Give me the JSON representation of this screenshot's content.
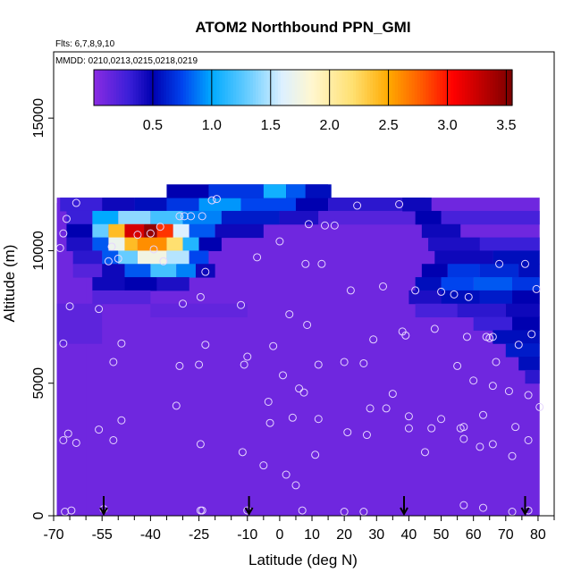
{
  "chart_data": {
    "type": "heatmap",
    "title": "ATOM2 Northbound PPN_GMI",
    "flights_label": "Flts: 6,7,8,9,10",
    "dates_label": "MMDD: 0210,0213,0215,0218,0219",
    "xlabel": "Latitude (deg N)",
    "ylabel": "Altitude (m)",
    "xlim": [
      -70,
      85
    ],
    "ylim": [
      0,
      17500
    ],
    "x_ticks": [
      -70,
      -55,
      -40,
      -25,
      -10,
      0,
      10,
      20,
      30,
      40,
      50,
      60,
      70,
      80
    ],
    "x_minor_ticks": [
      -65,
      -60,
      -50,
      -45,
      -35,
      -30,
      -20,
      -15,
      -5,
      5,
      15,
      25,
      35,
      45,
      55,
      65,
      75,
      85
    ],
    "y_ticks": [
      0,
      5000,
      10000,
      15000
    ],
    "colorbar": {
      "min": 0,
      "max": 3.55,
      "ticks": [
        0.5,
        1.0,
        1.5,
        2.0,
        2.5,
        3.0,
        3.5
      ],
      "tick_labels": [
        "0.5",
        "1.0",
        "1.5",
        "2.0",
        "2.5",
        "3.0",
        "3.5"
      ],
      "stops": [
        [
          0.0,
          "#8a2be2"
        ],
        [
          0.3,
          "#3a1fd8"
        ],
        [
          0.5,
          "#0000b0"
        ],
        [
          0.75,
          "#0044ee"
        ],
        [
          1.0,
          "#00aaff"
        ],
        [
          1.3,
          "#66ccff"
        ],
        [
          1.6,
          "#ddf0ff"
        ],
        [
          1.85,
          "#fff7d0"
        ],
        [
          2.2,
          "#ffe070"
        ],
        [
          2.5,
          "#ffaa00"
        ],
        [
          2.8,
          "#ff5500"
        ],
        [
          3.05,
          "#ff0000"
        ],
        [
          3.55,
          "#7a0000"
        ]
      ]
    },
    "background_value": 0.1,
    "background_columns": [
      {
        "x0": -69.0,
        "x1": 80.5,
        "ytop": 12000
      },
      {
        "x0": -69.0,
        "x1": -60.0,
        "ytop": 11800
      }
    ],
    "cells": [
      {
        "x0": -68,
        "x1": -55,
        "y0": 11500,
        "y1": 12000,
        "v": 0.3
      },
      {
        "x0": -55,
        "x1": -45,
        "y0": 11500,
        "y1": 12000,
        "v": 0.45
      },
      {
        "x0": -45,
        "x1": -35,
        "y0": 11500,
        "y1": 12000,
        "v": 0.55
      },
      {
        "x0": -35,
        "x1": -25,
        "y0": 11500,
        "y1": 12000,
        "v": 0.7
      },
      {
        "x0": -25,
        "x1": -12,
        "y0": 11500,
        "y1": 12000,
        "v": 0.95
      },
      {
        "x0": -12,
        "x1": 5,
        "y0": 11500,
        "y1": 12000,
        "v": 0.75
      },
      {
        "x0": 5,
        "x1": 15,
        "y0": 11500,
        "y1": 12000,
        "v": 0.5
      },
      {
        "x0": 15,
        "x1": 45,
        "y0": 11500,
        "y1": 12000,
        "v": 0.35
      },
      {
        "x0": -35,
        "x1": 15,
        "y0": 12000,
        "y1": 12500,
        "v": 0.5
      },
      {
        "x0": -22,
        "x1": -5,
        "y0": 12000,
        "y1": 12500,
        "v": 0.7
      },
      {
        "x0": -5,
        "x1": 2,
        "y0": 12000,
        "y1": 12500,
        "v": 1.05
      },
      {
        "x0": 2,
        "x1": 8,
        "y0": 12000,
        "y1": 12500,
        "v": 0.8
      },
      {
        "x0": 8,
        "x1": 16,
        "y0": 12000,
        "y1": 12500,
        "v": 0.55
      },
      {
        "x0": -66,
        "x1": -58,
        "y0": 11000,
        "y1": 11500,
        "v": 0.3
      },
      {
        "x0": -58,
        "x1": -50,
        "y0": 11000,
        "y1": 11500,
        "v": 1.0
      },
      {
        "x0": -50,
        "x1": -40,
        "y0": 11000,
        "y1": 11500,
        "v": 1.4
      },
      {
        "x0": -40,
        "x1": -30,
        "y0": 11000,
        "y1": 11500,
        "v": 1.2
      },
      {
        "x0": -30,
        "x1": -18,
        "y0": 11000,
        "y1": 11500,
        "v": 0.9
      },
      {
        "x0": -18,
        "x1": 0,
        "y0": 11000,
        "y1": 11500,
        "v": 0.6
      },
      {
        "x0": 0,
        "x1": 12,
        "y0": 11000,
        "y1": 11500,
        "v": 0.4
      },
      {
        "x0": 12,
        "x1": 42,
        "y0": 11000,
        "y1": 11500,
        "v": 0.2
      },
      {
        "x0": -66,
        "x1": -58,
        "y0": 10500,
        "y1": 11000,
        "v": 0.5
      },
      {
        "x0": -58,
        "x1": -53,
        "y0": 10500,
        "y1": 11000,
        "v": 1.3
      },
      {
        "x0": -53,
        "x1": -48,
        "y0": 10500,
        "y1": 11000,
        "v": 2.4
      },
      {
        "x0": -48,
        "x1": -42,
        "y0": 10500,
        "y1": 11000,
        "v": 3.2
      },
      {
        "x0": -42,
        "x1": -38,
        "y0": 10500,
        "y1": 11000,
        "v": 3.45
      },
      {
        "x0": -38,
        "x1": -33,
        "y0": 10500,
        "y1": 11000,
        "v": 2.9
      },
      {
        "x0": -33,
        "x1": -28,
        "y0": 10500,
        "y1": 11000,
        "v": 1.6
      },
      {
        "x0": -28,
        "x1": -20,
        "y0": 10500,
        "y1": 11000,
        "v": 0.8
      },
      {
        "x0": -20,
        "x1": -5,
        "y0": 10500,
        "y1": 11000,
        "v": 0.45
      },
      {
        "x0": -66,
        "x1": -58,
        "y0": 10000,
        "y1": 10500,
        "v": 0.4
      },
      {
        "x0": -58,
        "x1": -53,
        "y0": 10000,
        "y1": 10500,
        "v": 0.8
      },
      {
        "x0": -53,
        "x1": -48,
        "y0": 10000,
        "y1": 10500,
        "v": 1.7
      },
      {
        "x0": -48,
        "x1": -44,
        "y0": 10000,
        "y1": 10500,
        "v": 2.4
      },
      {
        "x0": -44,
        "x1": -35,
        "y0": 10000,
        "y1": 10500,
        "v": 2.6
      },
      {
        "x0": -35,
        "x1": -30,
        "y0": 10000,
        "y1": 10500,
        "v": 2.2
      },
      {
        "x0": -30,
        "x1": -25,
        "y0": 10000,
        "y1": 10500,
        "v": 1.1
      },
      {
        "x0": -25,
        "x1": -18,
        "y0": 10000,
        "y1": 10500,
        "v": 0.5
      },
      {
        "x0": -64,
        "x1": -55,
        "y0": 9500,
        "y1": 10000,
        "v": 0.35
      },
      {
        "x0": -55,
        "x1": -50,
        "y0": 9500,
        "y1": 10000,
        "v": 0.8
      },
      {
        "x0": -50,
        "x1": -44,
        "y0": 9500,
        "y1": 10000,
        "v": 1.3
      },
      {
        "x0": -44,
        "x1": -35,
        "y0": 9500,
        "y1": 10000,
        "v": 1.75
      },
      {
        "x0": -35,
        "x1": -28,
        "y0": 9500,
        "y1": 10000,
        "v": 1.5
      },
      {
        "x0": -28,
        "x1": -22,
        "y0": 9500,
        "y1": 10000,
        "v": 0.75
      },
      {
        "x0": -64,
        "x1": -55,
        "y0": 9000,
        "y1": 9500,
        "v": 0.2
      },
      {
        "x0": -55,
        "x1": -48,
        "y0": 9000,
        "y1": 9500,
        "v": 0.45
      },
      {
        "x0": -48,
        "x1": -40,
        "y0": 9000,
        "y1": 9500,
        "v": 0.8
      },
      {
        "x0": -40,
        "x1": -32,
        "y0": 9000,
        "y1": 9500,
        "v": 1.2
      },
      {
        "x0": -32,
        "x1": -26,
        "y0": 9000,
        "y1": 9500,
        "v": 0.9
      },
      {
        "x0": -26,
        "x1": -20,
        "y0": 9000,
        "y1": 9500,
        "v": 0.45
      },
      {
        "x0": -58,
        "x1": -48,
        "y0": 8500,
        "y1": 9000,
        "v": 0.45
      },
      {
        "x0": -48,
        "x1": -38,
        "y0": 8500,
        "y1": 9000,
        "v": 0.5
      },
      {
        "x0": -38,
        "x1": -28,
        "y0": 8500,
        "y1": 9000,
        "v": 0.4
      },
      {
        "x0": -58,
        "x1": -40,
        "y0": 8000,
        "y1": 8500,
        "v": 0.2
      },
      {
        "x0": 45,
        "x1": 80.5,
        "y0": 11000,
        "y1": 11500,
        "v": 0.25
      },
      {
        "x0": 38,
        "x1": 47,
        "y0": 11500,
        "y1": 12000,
        "v": 0.45
      },
      {
        "x0": 42,
        "x1": 50,
        "y0": 11000,
        "y1": 11500,
        "v": 0.5
      },
      {
        "x0": 44,
        "x1": 56,
        "y0": 10500,
        "y1": 11000,
        "v": 0.45
      },
      {
        "x0": 46,
        "x1": 62,
        "y0": 10000,
        "y1": 10500,
        "v": 0.4
      },
      {
        "x0": 62,
        "x1": 80.5,
        "y0": 10000,
        "y1": 10500,
        "v": 0.3
      },
      {
        "x0": 48,
        "x1": 66,
        "y0": 9500,
        "y1": 10000,
        "v": 0.45
      },
      {
        "x0": 66,
        "x1": 80.5,
        "y0": 9500,
        "y1": 10000,
        "v": 0.55
      },
      {
        "x0": 44,
        "x1": 52,
        "y0": 9000,
        "y1": 9500,
        "v": 0.5
      },
      {
        "x0": 52,
        "x1": 62,
        "y0": 9000,
        "y1": 9500,
        "v": 0.7
      },
      {
        "x0": 62,
        "x1": 74,
        "y0": 9000,
        "y1": 9500,
        "v": 0.65
      },
      {
        "x0": 74,
        "x1": 80.5,
        "y0": 9000,
        "y1": 9500,
        "v": 0.55
      },
      {
        "x0": 42,
        "x1": 50,
        "y0": 8500,
        "y1": 9000,
        "v": 0.55
      },
      {
        "x0": 50,
        "x1": 60,
        "y0": 8500,
        "y1": 9000,
        "v": 0.75
      },
      {
        "x0": 60,
        "x1": 72,
        "y0": 8500,
        "y1": 9000,
        "v": 0.8
      },
      {
        "x0": 72,
        "x1": 80.5,
        "y0": 8500,
        "y1": 9000,
        "v": 0.7
      },
      {
        "x0": 40,
        "x1": 50,
        "y0": 8000,
        "y1": 8500,
        "v": 0.4
      },
      {
        "x0": 50,
        "x1": 62,
        "y0": 8000,
        "y1": 8500,
        "v": 0.55
      },
      {
        "x0": 62,
        "x1": 72,
        "y0": 8000,
        "y1": 8500,
        "v": 0.6
      },
      {
        "x0": 72,
        "x1": 80.5,
        "y0": 8000,
        "y1": 8500,
        "v": 0.5
      },
      {
        "x0": 42,
        "x1": 55,
        "y0": 7500,
        "y1": 8000,
        "v": 0.25
      },
      {
        "x0": 55,
        "x1": 70,
        "y0": 7500,
        "y1": 8000,
        "v": 0.35
      },
      {
        "x0": 70,
        "x1": 80.5,
        "y0": 7500,
        "y1": 8000,
        "v": 0.45
      },
      {
        "x0": 60,
        "x1": 72,
        "y0": 7000,
        "y1": 7500,
        "v": 0.3
      },
      {
        "x0": 72,
        "x1": 80.5,
        "y0": 7000,
        "y1": 7500,
        "v": 0.5
      },
      {
        "x0": 66,
        "x1": 80.5,
        "y0": 6500,
        "y1": 7000,
        "v": 0.55
      },
      {
        "x0": 70,
        "x1": 80.5,
        "y0": 6000,
        "y1": 6500,
        "v": 0.6
      },
      {
        "x0": 74,
        "x1": 80.5,
        "y0": 5500,
        "y1": 6000,
        "v": 0.55
      },
      {
        "x0": 76,
        "x1": 80.5,
        "y0": 5000,
        "y1": 5500,
        "v": 0.35
      },
      {
        "x0": -69,
        "x1": -55,
        "y0": 6500,
        "y1": 8000,
        "v": 0.17
      },
      {
        "x0": -40,
        "x1": -10,
        "y0": 7500,
        "y1": 8000,
        "v": 0.15
      }
    ],
    "points": [
      {
        "x": -68,
        "y": 10100
      },
      {
        "x": -67,
        "y": 10650
      },
      {
        "x": -66,
        "y": 11200
      },
      {
        "x": -63,
        "y": 11800
      },
      {
        "x": -67,
        "y": 6500
      },
      {
        "x": -65,
        "y": 7900
      },
      {
        "x": -67,
        "y": 2850
      },
      {
        "x": -65.5,
        "y": 3100
      },
      {
        "x": -63,
        "y": 2750
      },
      {
        "x": -66.5,
        "y": 150
      },
      {
        "x": -64.5,
        "y": 200
      },
      {
        "x": -56,
        "y": 7800
      },
      {
        "x": -53,
        "y": 9600
      },
      {
        "x": -52,
        "y": 10150
      },
      {
        "x": -50,
        "y": 9700
      },
      {
        "x": -49,
        "y": 6500
      },
      {
        "x": -51.5,
        "y": 5800
      },
      {
        "x": -49,
        "y": 3600
      },
      {
        "x": -51.5,
        "y": 2850
      },
      {
        "x": -56,
        "y": 3250
      },
      {
        "x": -54.5,
        "y": 250
      },
      {
        "x": -44,
        "y": 10600
      },
      {
        "x": -40,
        "y": 10650
      },
      {
        "x": -37,
        "y": 10900
      },
      {
        "x": -31,
        "y": 11300
      },
      {
        "x": -29.5,
        "y": 11300
      },
      {
        "x": -27.5,
        "y": 11300
      },
      {
        "x": -24,
        "y": 11300
      },
      {
        "x": -21,
        "y": 11900
      },
      {
        "x": -19.5,
        "y": 11950
      },
      {
        "x": -32,
        "y": 4150
      },
      {
        "x": -31,
        "y": 5650
      },
      {
        "x": -30,
        "y": 8000
      },
      {
        "x": -25,
        "y": 5700
      },
      {
        "x": -24.5,
        "y": 8250
      },
      {
        "x": -23,
        "y": 6450
      },
      {
        "x": -23,
        "y": 9200
      },
      {
        "x": -24.5,
        "y": 2700
      },
      {
        "x": -24,
        "y": 200
      },
      {
        "x": -24.5,
        "y": 200
      },
      {
        "x": -12,
        "y": 7950
      },
      {
        "x": -11,
        "y": 5700
      },
      {
        "x": -10,
        "y": 6000
      },
      {
        "x": -7,
        "y": 9750
      },
      {
        "x": -11.5,
        "y": 2400
      },
      {
        "x": -10,
        "y": 200
      },
      {
        "x": -5,
        "y": 1900
      },
      {
        "x": -3.5,
        "y": 4300
      },
      {
        "x": -3,
        "y": 3500
      },
      {
        "x": -2,
        "y": 6400
      },
      {
        "x": 0,
        "y": 10350
      },
      {
        "x": 1,
        "y": 5300
      },
      {
        "x": 3,
        "y": 7600
      },
      {
        "x": 4,
        "y": 3700
      },
      {
        "x": 2,
        "y": 1550
      },
      {
        "x": 5,
        "y": 1150
      },
      {
        "x": 6,
        "y": 4800
      },
      {
        "x": 7.5,
        "y": 4650
      },
      {
        "x": 8,
        "y": 9500
      },
      {
        "x": 8.5,
        "y": 7200
      },
      {
        "x": 9,
        "y": 11000
      },
      {
        "x": 12,
        "y": 5700
      },
      {
        "x": 12,
        "y": 3650
      },
      {
        "x": 11,
        "y": 2300
      },
      {
        "x": 13,
        "y": 9500
      },
      {
        "x": 14,
        "y": 10950
      },
      {
        "x": 17,
        "y": 10950
      },
      {
        "x": 7,
        "y": 200
      },
      {
        "x": 20,
        "y": 5800
      },
      {
        "x": 21,
        "y": 3150
      },
      {
        "x": 22,
        "y": 8500
      },
      {
        "x": 24,
        "y": 11700
      },
      {
        "x": 26,
        "y": 5750
      },
      {
        "x": 28,
        "y": 4050
      },
      {
        "x": 27,
        "y": 3050
      },
      {
        "x": 29,
        "y": 6650
      },
      {
        "x": 32,
        "y": 8650
      },
      {
        "x": 33,
        "y": 4050
      },
      {
        "x": 35,
        "y": 4600
      },
      {
        "x": 37,
        "y": 11750
      },
      {
        "x": 38,
        "y": 6950
      },
      {
        "x": 39,
        "y": 6800
      },
      {
        "x": 40,
        "y": 3750
      },
      {
        "x": 40,
        "y": 3300
      },
      {
        "x": 42,
        "y": 8500
      },
      {
        "x": 45,
        "y": 2400
      },
      {
        "x": 47,
        "y": 3300
      },
      {
        "x": 48,
        "y": 7050
      },
      {
        "x": 50,
        "y": 8450
      },
      {
        "x": 50,
        "y": 3650
      },
      {
        "x": 54,
        "y": 8350
      },
      {
        "x": 55,
        "y": 5650
      },
      {
        "x": 56,
        "y": 3300
      },
      {
        "x": 57,
        "y": 2900
      },
      {
        "x": 57,
        "y": 3350
      },
      {
        "x": 58,
        "y": 6750
      },
      {
        "x": 58.5,
        "y": 8250
      },
      {
        "x": 60,
        "y": 5100
      },
      {
        "x": 62,
        "y": 2600
      },
      {
        "x": 63,
        "y": 3800
      },
      {
        "x": 64,
        "y": 6750
      },
      {
        "x": 65,
        "y": 6700
      },
      {
        "x": 66,
        "y": 6750
      },
      {
        "x": 66,
        "y": 4900
      },
      {
        "x": 66,
        "y": 2700
      },
      {
        "x": 67,
        "y": 5800
      },
      {
        "x": 68,
        "y": 9500
      },
      {
        "x": 71,
        "y": 4700
      },
      {
        "x": 72,
        "y": 2250
      },
      {
        "x": 73,
        "y": 3350
      },
      {
        "x": 74,
        "y": 6450
      },
      {
        "x": 77,
        "y": 4550
      },
      {
        "x": 77,
        "y": 2850
      },
      {
        "x": 78,
        "y": 6850
      },
      {
        "x": 79.5,
        "y": 8550
      },
      {
        "x": 80.5,
        "y": 4100
      },
      {
        "x": 76,
        "y": 9500
      },
      {
        "x": 57,
        "y": 400
      },
      {
        "x": 63,
        "y": 300
      },
      {
        "x": 72,
        "y": 150
      },
      {
        "x": 77,
        "y": 200
      },
      {
        "x": 26,
        "y": 150
      },
      {
        "x": 20,
        "y": 150
      },
      {
        "x": -39,
        "y": 10050
      },
      {
        "x": -36,
        "y": 9600
      }
    ],
    "arrows_x": [
      -54.5,
      -9.5,
      38.5,
      76
    ]
  }
}
